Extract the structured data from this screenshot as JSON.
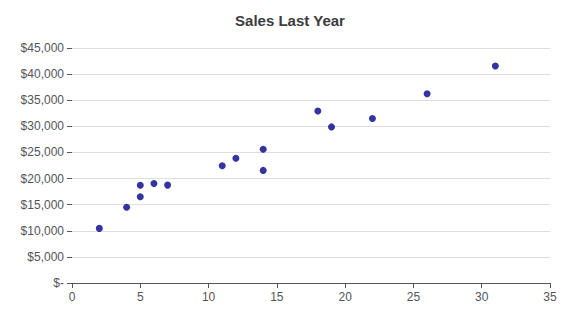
{
  "chart_data": {
    "type": "scatter",
    "title": "Sales Last Year",
    "x": [
      2,
      4,
      5,
      5,
      6,
      7,
      11,
      12,
      14,
      14,
      18,
      19,
      22,
      26,
      31
    ],
    "values": [
      10456,
      14500,
      18735,
      16500,
      19045,
      18743,
      22456,
      23900,
      21560,
      25600,
      32934,
      29890,
      31500,
      36234,
      41560
    ],
    "color": "#00008b",
    "marker": "circle",
    "xlim": [
      0,
      35
    ],
    "xticks": [
      0,
      5,
      10,
      15,
      20,
      25,
      30,
      35
    ],
    "ylim": [
      0,
      45000
    ],
    "yticks": [
      {
        "value": 0,
        "label": "$-"
      },
      {
        "value": 5000,
        "label": "$5,000"
      },
      {
        "value": 10000,
        "label": "$10,000"
      },
      {
        "value": 15000,
        "label": "$15,000"
      },
      {
        "value": 20000,
        "label": "$20,000"
      },
      {
        "value": 25000,
        "label": "$25,000"
      },
      {
        "value": 30000,
        "label": "$30,000"
      },
      {
        "value": 35000,
        "label": "$35,000"
      },
      {
        "value": 40000,
        "label": "$40,000"
      },
      {
        "value": 45000,
        "label": "$45,000"
      }
    ],
    "grid": true
  }
}
